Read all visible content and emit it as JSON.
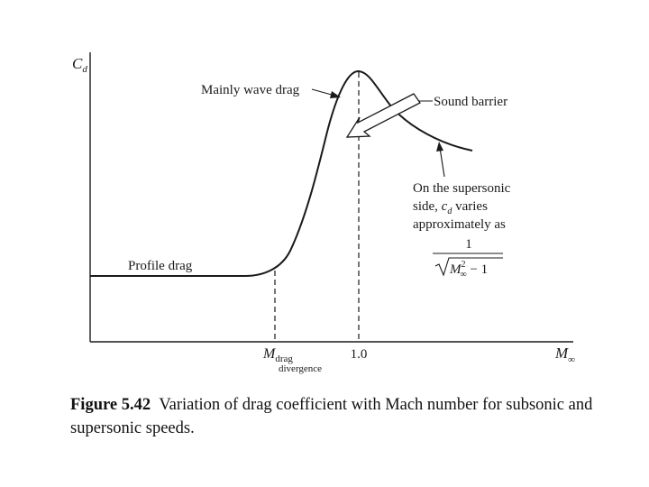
{
  "figure": {
    "y_axis_symbol": "C",
    "y_axis_subscript": "d",
    "x_axis_symbol": "M",
    "x_axis_subscript": "∞",
    "tick_mach_one": "1.0",
    "tick_drag_divergence_main": "M",
    "tick_drag_divergence_sub": "drag",
    "tick_drag_divergence_line2": "divergence",
    "label_wave_drag": "Mainly wave drag",
    "label_sound_barrier": "Sound barrier",
    "label_profile_drag": "Profile drag",
    "supersonic_note_line1": "On the supersonic",
    "supersonic_note_line2_a": "side, ",
    "supersonic_note_line2_sym": "c",
    "supersonic_note_line2_sub": "d",
    "supersonic_note_line2_b": " varies",
    "supersonic_note_line3": "approximately as",
    "formula_numerator": "1",
    "formula_M": "M",
    "formula_exp": "2",
    "formula_sub": "∞",
    "formula_tail": " − 1"
  },
  "caption": {
    "figure_number": "Figure 5.42",
    "text": "Variation of drag coefficient with Mach number for subsonic and supersonic speeds."
  },
  "chart_data": {
    "type": "line",
    "title": "Variation of drag coefficient with Mach number",
    "xlabel": "M∞",
    "ylabel": "Cd",
    "x_ticks": [
      "M drag divergence",
      "1.0"
    ],
    "series": [
      {
        "name": "Cd",
        "x": [
          0.0,
          0.3,
          0.6,
          0.8,
          0.88,
          0.92,
          0.96,
          1.0,
          1.04,
          1.1,
          1.2,
          1.32
        ],
        "y": [
          0.2,
          0.2,
          0.2,
          0.2,
          0.24,
          0.44,
          0.72,
          0.95,
          0.91,
          0.8,
          0.7,
          0.66
        ]
      }
    ],
    "annotations": [
      "Profile drag",
      "Mainly wave drag",
      "Sound barrier",
      "On the supersonic side, cd varies approximately as 1/√(M∞² − 1)"
    ]
  }
}
